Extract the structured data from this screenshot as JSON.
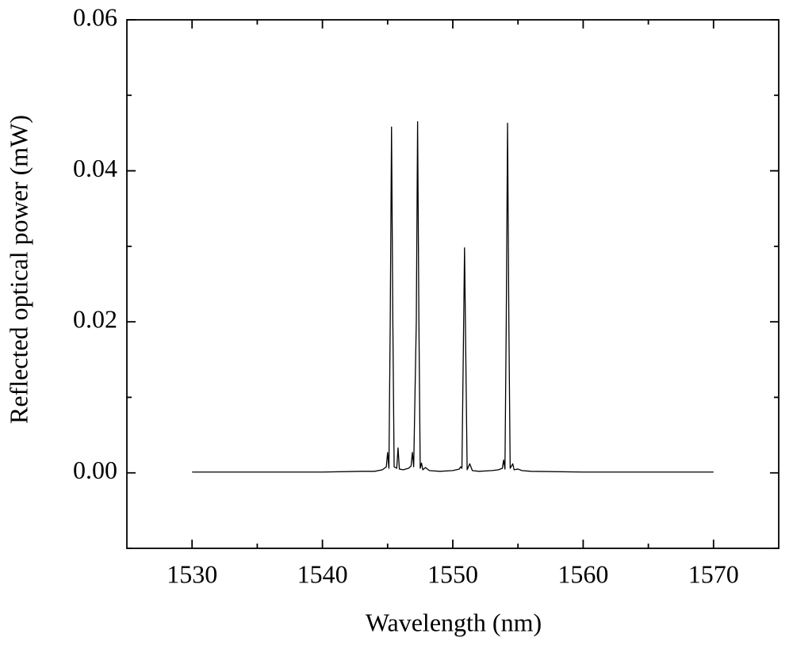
{
  "chart_data": {
    "type": "line",
    "x_label": "Wavelength (nm)",
    "y_label": "Reflected optical power (mW)",
    "color": "#000000",
    "x": [
      1530,
      1535,
      1540,
      1543,
      1544,
      1544.6,
      1544.9,
      1545.0,
      1545.1,
      1545.2,
      1545.3,
      1545.4,
      1545.5,
      1545.7,
      1545.8,
      1545.9,
      1546.2,
      1546.6,
      1546.8,
      1546.9,
      1547.0,
      1547.2,
      1547.3,
      1547.4,
      1547.5,
      1547.6,
      1547.7,
      1547.9,
      1548.2,
      1549,
      1550,
      1550.5,
      1550.6,
      1550.7,
      1550.8,
      1550.9,
      1551.0,
      1551.1,
      1551.3,
      1551.5,
      1552,
      1553,
      1553.5,
      1553.8,
      1553.9,
      1554.0,
      1554.1,
      1554.2,
      1554.3,
      1554.4,
      1554.6,
      1554.7,
      1555,
      1555.3,
      1556,
      1560,
      1565,
      1570
    ],
    "values": [
      0.0001,
      0.0001,
      0.0001,
      0.0002,
      0.0002,
      0.0004,
      0.0008,
      0.0027,
      0.0006,
      0.02,
      0.0458,
      0.02,
      0.0008,
      0.0006,
      0.0033,
      0.0005,
      0.0004,
      0.0006,
      0.0009,
      0.0027,
      0.0008,
      0.02,
      0.0465,
      0.02,
      0.0006,
      0.0013,
      0.0004,
      0.0007,
      0.0003,
      0.0002,
      0.0003,
      0.0005,
      0.0008,
      0.0006,
      0.015,
      0.0298,
      0.015,
      0.0004,
      0.0012,
      0.0003,
      0.0002,
      0.0003,
      0.0004,
      0.0006,
      0.0017,
      0.0005,
      0.02,
      0.0463,
      0.02,
      0.0006,
      0.0012,
      0.0004,
      0.0005,
      0.0003,
      0.0002,
      0.0001,
      0.0001,
      0.0001
    ],
    "xlim": [
      1525,
      1575
    ],
    "ylim": [
      -0.01,
      0.06
    ],
    "xticks": [
      1530,
      1540,
      1550,
      1560,
      1570
    ],
    "xminorticks": [
      1535,
      1545,
      1555,
      1565
    ],
    "yticks": [
      {
        "value": 0,
        "label": "0.00"
      },
      0.02,
      0.04,
      0.06
    ],
    "yminorticks": [
      -0.01,
      0.01,
      0.03,
      0.05
    ]
  }
}
